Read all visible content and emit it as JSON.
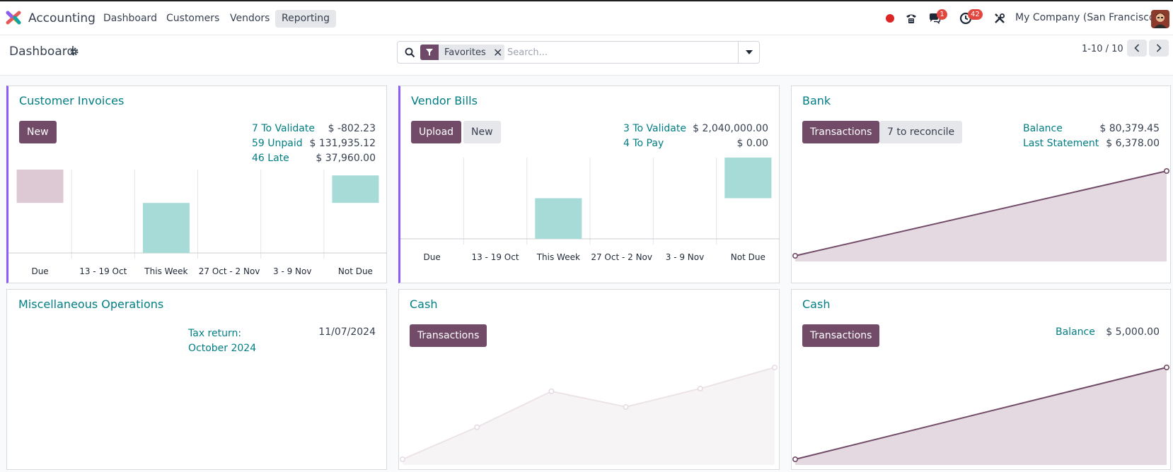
{
  "topbar": {
    "app_name": "Accounting",
    "menu": [
      "Dashboard",
      "Customers",
      "Vendors",
      "Reporting"
    ],
    "active_menu": "Reporting",
    "discuss_badge": "1",
    "activity_badge": "42",
    "company": "My Company (San Francisco)",
    "icons": [
      "app-logo-icon",
      "record-dot-icon",
      "phone-icon",
      "chat-icon",
      "clock-icon",
      "tools-icon"
    ]
  },
  "control_panel": {
    "title": "Dashboard",
    "search": {
      "facet": "Favorites",
      "placeholder": "Search..."
    },
    "pager": "1-10 / 10"
  },
  "colors": {
    "brand": "#714b67",
    "link": "#017e84",
    "accent_border": "#8b5cf6",
    "bar_past": "#dcc9d4",
    "bar_future": "#a7dbd8",
    "line": "#714b67"
  },
  "cards": {
    "customer_invoices": {
      "title": "Customer Invoices",
      "buttons": [
        "New"
      ],
      "stats": [
        {
          "label": "7 To Validate",
          "value": "$ -802.23"
        },
        {
          "label": "59 Unpaid",
          "value": "$ 131,935.12"
        },
        {
          "label": "46 Late",
          "value": "$ 37,960.00"
        }
      ]
    },
    "vendor_bills": {
      "title": "Vendor Bills",
      "buttons": [
        "Upload",
        "New"
      ],
      "stats": [
        {
          "label": "3 To Validate",
          "value": "$ 2,040,000.00"
        },
        {
          "label": "4 To Pay",
          "value": "$ 0.00"
        }
      ]
    },
    "bank": {
      "title": "Bank",
      "buttons": [
        "Transactions",
        "7 to reconcile"
      ],
      "stats": [
        {
          "label": "Balance",
          "value": "$ 80,379.45"
        },
        {
          "label": "Last Statement",
          "value": "$ 6,378.00"
        }
      ]
    },
    "misc": {
      "title": "Miscellaneous Operations",
      "stats": [
        {
          "label": "Tax return:\nOctober 2024",
          "value": "11/07/2024"
        }
      ]
    },
    "cash1": {
      "title": "Cash",
      "buttons": [
        "Transactions"
      ]
    },
    "cash2": {
      "title": "Cash",
      "buttons": [
        "Transactions"
      ],
      "stats": [
        {
          "label": "Balance",
          "value": "$ 5,000.00"
        }
      ]
    }
  },
  "chart_data": [
    {
      "type": "bar",
      "chart": "customer-invoices",
      "categories": [
        "Due",
        "13 - 19 Oct",
        "This Week",
        "27 Oct - 2 Nov",
        "3 - 9 Nov",
        "Not Due"
      ],
      "bars": [
        {
          "category": "Due",
          "from": 1.0,
          "to": 0.6,
          "kind": "past"
        },
        {
          "category": "This Week",
          "from": 0.6,
          "to": 0.0,
          "kind": "future"
        },
        {
          "category": "Not Due",
          "from": 0.93,
          "to": 0.6,
          "kind": "future"
        }
      ]
    },
    {
      "type": "bar",
      "chart": "vendor-bills",
      "categories": [
        "Due",
        "13 - 19 Oct",
        "This Week",
        "27 Oct - 2 Nov",
        "3 - 9 Nov",
        "Not Due"
      ],
      "bars": [
        {
          "category": "This Week",
          "from": 0.5,
          "to": 0.0,
          "kind": "future"
        },
        {
          "category": "Not Due",
          "from": 1.0,
          "to": 0.5,
          "kind": "future"
        }
      ]
    },
    {
      "type": "area",
      "chart": "bank",
      "values": [
        0,
        1
      ],
      "style": "primary"
    },
    {
      "type": "area",
      "chart": "cash1",
      "values": [
        0,
        0.35,
        0.74,
        0.57,
        0.77,
        1.0
      ],
      "style": "muted"
    },
    {
      "type": "area",
      "chart": "cash2",
      "values": [
        0,
        1
      ],
      "style": "primary"
    }
  ]
}
